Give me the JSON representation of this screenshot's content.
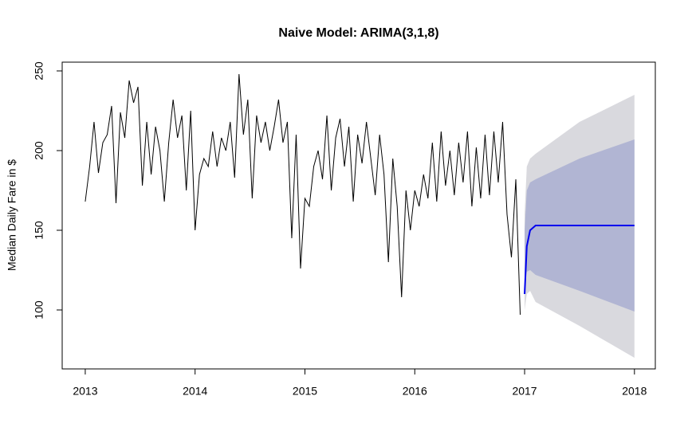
{
  "chart_data": {
    "type": "forecast",
    "title": "Naive Model: ARIMA(3,1,8)",
    "y_label": "Median Daily Fare in $",
    "xlim": [
      2012.79,
      2018.19
    ],
    "ylim": [
      63,
      255.5
    ],
    "xticks": [
      2013,
      2014,
      2015,
      2016,
      2017,
      2018
    ],
    "yticks": [
      100,
      150,
      200,
      250
    ],
    "history": {
      "color": "#000000",
      "x": [
        2013.0,
        2013.04,
        2013.08,
        2013.12,
        2013.16,
        2013.2,
        2013.24,
        2013.28,
        2013.32,
        2013.36,
        2013.4,
        2013.44,
        2013.48,
        2013.52,
        2013.56,
        2013.6,
        2013.64,
        2013.68,
        2013.72,
        2013.76,
        2013.8,
        2013.84,
        2013.88,
        2013.92,
        2013.96,
        2014.0,
        2014.04,
        2014.08,
        2014.12,
        2014.16,
        2014.2,
        2014.24,
        2014.28,
        2014.32,
        2014.36,
        2014.4,
        2014.44,
        2014.48,
        2014.52,
        2014.56,
        2014.6,
        2014.64,
        2014.68,
        2014.72,
        2014.76,
        2014.8,
        2014.84,
        2014.88,
        2014.92,
        2014.96,
        2015.0,
        2015.04,
        2015.08,
        2015.12,
        2015.16,
        2015.2,
        2015.24,
        2015.28,
        2015.32,
        2015.36,
        2015.4,
        2015.44,
        2015.48,
        2015.52,
        2015.56,
        2015.6,
        2015.64,
        2015.68,
        2015.72,
        2015.76,
        2015.8,
        2015.84,
        2015.88,
        2015.92,
        2015.96,
        2016.0,
        2016.04,
        2016.08,
        2016.12,
        2016.16,
        2016.2,
        2016.24,
        2016.28,
        2016.32,
        2016.36,
        2016.4,
        2016.44,
        2016.48,
        2016.52,
        2016.56,
        2016.6,
        2016.64,
        2016.68,
        2016.72,
        2016.76,
        2016.8,
        2016.84,
        2016.88,
        2016.92,
        2016.96
      ],
      "values": [
        168,
        190,
        218,
        186,
        205,
        210,
        228,
        167,
        224,
        208,
        244,
        230,
        240,
        178,
        218,
        185,
        215,
        200,
        168,
        205,
        232,
        208,
        222,
        175,
        225,
        150,
        185,
        195,
        190,
        212,
        190,
        208,
        200,
        218,
        183,
        248,
        210,
        232,
        170,
        222,
        205,
        218,
        200,
        215,
        232,
        205,
        218,
        145,
        210,
        126,
        170,
        165,
        190,
        200,
        182,
        222,
        175,
        208,
        220,
        190,
        215,
        168,
        210,
        192,
        218,
        195,
        172,
        210,
        185,
        130,
        195,
        165,
        108,
        175,
        150,
        175,
        165,
        185,
        170,
        205,
        168,
        212,
        178,
        200,
        172,
        205,
        180,
        212,
        165,
        202,
        170,
        210,
        172,
        212,
        180,
        218,
        160,
        133,
        182,
        97
      ]
    },
    "forecast": {
      "color": "#0000ee",
      "x": [
        2017.0,
        2017.02,
        2017.05,
        2017.1,
        2017.5,
        2018.0
      ],
      "values": [
        110,
        140,
        150,
        153,
        153,
        153
      ]
    },
    "intervals": [
      {
        "color": "#d9d9de",
        "lower": [
          100,
          110,
          112,
          105,
          90,
          70
        ],
        "upper": [
          160,
          190,
          195,
          198,
          218,
          235
        ]
      },
      {
        "color": "#b1b5d3",
        "lower": [
          118,
          124,
          125,
          122,
          112,
          99
        ],
        "upper": [
          150,
          175,
          180,
          182,
          195,
          207
        ]
      }
    ]
  }
}
